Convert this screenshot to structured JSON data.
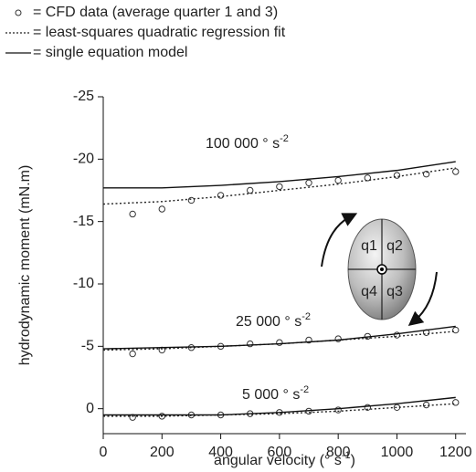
{
  "chart_data": {
    "type": "line",
    "x_label": [
      "angular velocity (° s",
      "-1",
      ")"
    ],
    "y_label": "hydrodynamic moment (mN.m)",
    "xlim": [
      0,
      1235
    ],
    "ylim": [
      -25,
      2
    ],
    "xticks": [
      0,
      200,
      400,
      600,
      800,
      1000,
      1200
    ],
    "yticks": [
      -25,
      -20,
      -15,
      -10,
      -5,
      0
    ],
    "y_inverted": true,
    "series": [
      {
        "name": "= CFD data (average quarter 1 and 3)",
        "style": "marker",
        "color": "#333333",
        "x": [
          100,
          200,
          300,
          400,
          500,
          600,
          700,
          800,
          900,
          1000,
          1100,
          1200
        ],
        "values": [
          [
            -15.6,
            -16.0,
            -16.7,
            -17.1,
            -17.5,
            -17.8,
            -18.1,
            -18.3,
            -18.5,
            -18.7,
            -18.8,
            -19.0
          ],
          [
            -4.4,
            -4.7,
            -4.9,
            -5.0,
            -5.2,
            -5.3,
            -5.5,
            -5.6,
            -5.8,
            -5.9,
            -6.1,
            -6.3
          ],
          [
            0.7,
            0.6,
            0.5,
            0.5,
            0.4,
            0.3,
            0.2,
            0.1,
            -0.1,
            -0.1,
            -0.3,
            -0.5
          ]
        ]
      },
      {
        "name": "= least-squares quadratic regression fit",
        "style": "dotted",
        "color": "#222222",
        "x": [
          0,
          200,
          400,
          600,
          800,
          1000,
          1200
        ],
        "values": [
          [
            -16.4,
            -16.6,
            -17.0,
            -17.5,
            -18.0,
            -18.6,
            -19.3
          ],
          [
            -4.7,
            -4.8,
            -5.0,
            -5.2,
            -5.5,
            -5.8,
            -6.2
          ],
          [
            0.6,
            0.6,
            0.5,
            0.4,
            0.2,
            -0.1,
            -0.4
          ]
        ]
      },
      {
        "name": "= single equation model",
        "style": "solid",
        "color": "#111111",
        "x": [
          0,
          200,
          400,
          600,
          800,
          1000,
          1200
        ],
        "values": [
          [
            -17.7,
            -17.7,
            -17.9,
            -18.2,
            -18.6,
            -19.1,
            -19.8
          ],
          [
            -4.8,
            -4.9,
            -5.0,
            -5.2,
            -5.5,
            -6.0,
            -6.6
          ],
          [
            0.5,
            0.5,
            0.5,
            0.3,
            0.0,
            -0.4,
            -0.9
          ]
        ]
      }
    ],
    "annotations": [
      {
        "text": "100 000 ° s",
        "sup": "-2"
      },
      {
        "text": "25 000 ° s",
        "sup": "-2"
      },
      {
        "text": "5 000 ° s",
        "sup": "-2"
      }
    ],
    "diagram_labels": [
      "q1",
      "q2",
      "q4",
      "q3"
    ]
  }
}
